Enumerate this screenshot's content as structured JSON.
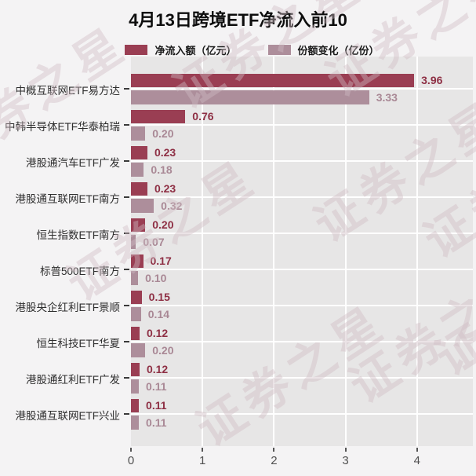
{
  "title": "4月13日跨境ETF净流入前10",
  "legend": {
    "items": [
      {
        "label": "净流入额（亿元）",
        "color": "#9a3e53"
      },
      {
        "label": "份额变化（亿份）",
        "color": "#ad8e9b"
      }
    ]
  },
  "watermark": {
    "text": "证券之星"
  },
  "colors": {
    "page_bg": "#f4f3f4",
    "plot_bg": "#e7e6e6",
    "grid": "#ffffff",
    "bar_primary": "#9a3e53",
    "bar_secondary": "#ad8e9b",
    "value_primary": "#8e2f44",
    "value_secondary": "#a98895",
    "category_label": "#2e2e2e",
    "axis_label": "#4f4f4f"
  },
  "chart_data": {
    "type": "bar",
    "orientation": "horizontal",
    "title": "4月13日跨境ETF净流入前10",
    "categories": [
      "中概互联网ETF易方达",
      "中韩半导体ETF华泰柏瑞",
      "港股通汽车ETF广发",
      "港股通互联网ETF南方",
      "恒生指数ETF南方",
      "标普500ETF南方",
      "港股央企红利ETF景顺",
      "恒生科技ETF华夏",
      "港股通红利ETF广发",
      "港股通互联网ETF兴业"
    ],
    "series": [
      {
        "name": "净流入额（亿元）",
        "color": "#9a3e53",
        "values": [
          3.96,
          0.76,
          0.23,
          0.23,
          0.2,
          0.17,
          0.15,
          0.12,
          0.12,
          0.11
        ]
      },
      {
        "name": "份额变化（亿份）",
        "color": "#ad8e9b",
        "values": [
          3.33,
          0.2,
          0.18,
          0.32,
          0.07,
          0.1,
          0.14,
          0.2,
          0.11,
          0.11
        ]
      }
    ],
    "value_label_format": "0.00",
    "xlabel": "",
    "ylabel": "",
    "xlim": [
      0,
      4.78
    ],
    "xticks": [
      0,
      1,
      2,
      3,
      4
    ],
    "grid": true,
    "legend_position": "top"
  }
}
